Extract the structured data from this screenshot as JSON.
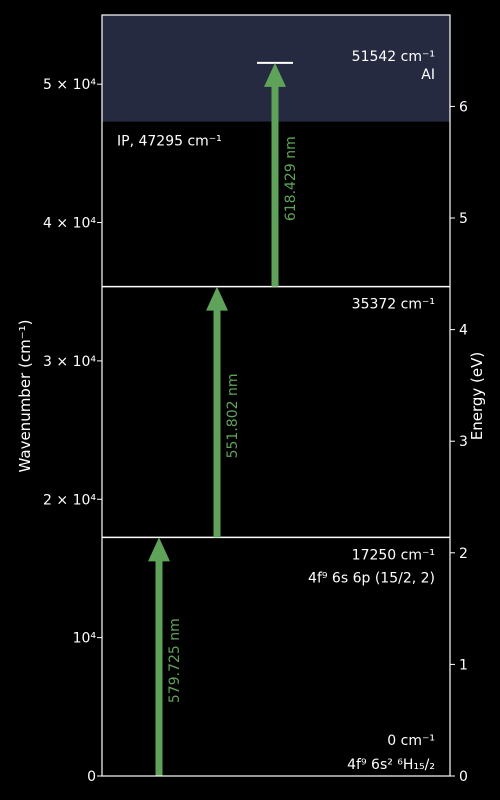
{
  "chart_data": {
    "type": "energy-level-diagram",
    "ylabel": "Wavenumber (cm⁻¹)",
    "ylabel_right": "Energy (eV)",
    "ylim": [
      0,
      55000
    ],
    "y_ticks": [
      {
        "value": 0,
        "label": "0"
      },
      {
        "value": 10000,
        "label": "10⁴"
      },
      {
        "value": 20000,
        "label": "2 × 10⁴"
      },
      {
        "value": 30000,
        "label": "3 × 10⁴"
      },
      {
        "value": 40000,
        "label": "4 × 10⁴"
      },
      {
        "value": 50000,
        "label": "5 × 10⁴"
      }
    ],
    "ev_ticks": [
      0,
      1,
      2,
      3,
      4,
      5,
      6
    ],
    "ionization": {
      "value": 47295,
      "label": "IP, 47295 cm⁻¹",
      "shade_color": "#262a40"
    },
    "levels": [
      {
        "value": 0,
        "energy_label": "0 cm⁻¹",
        "config_label": "4f⁹ 6s² ⁶H₁₅/₂"
      },
      {
        "value": 17250,
        "energy_label": "17250 cm⁻¹",
        "config_label": "4f⁹ 6s 6p (15/2, 2)"
      },
      {
        "value": 35372,
        "energy_label": "35372 cm⁻¹",
        "config_label": ""
      },
      {
        "value": 51542,
        "energy_label": "51542 cm⁻¹",
        "config_label": "AI"
      }
    ],
    "transitions": [
      {
        "from": 0,
        "to": 17250,
        "label": "579.725 nm"
      },
      {
        "from": 17250,
        "to": 35372,
        "label": "551.802 nm"
      },
      {
        "from": 35372,
        "to": 51542,
        "label": "618.429 nm"
      }
    ],
    "colors": {
      "arrow": "#5fa35a",
      "line": "#ffffff",
      "background": "#000000"
    }
  }
}
